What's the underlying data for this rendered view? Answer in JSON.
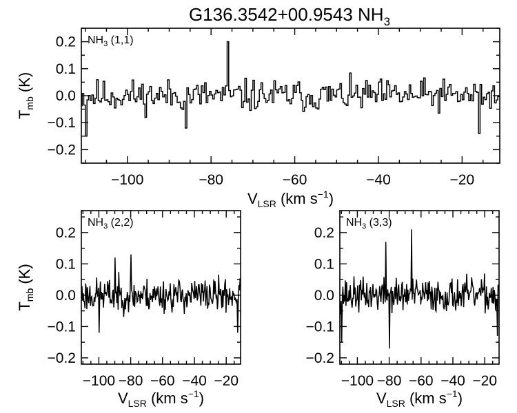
{
  "title": {
    "main": "G136.3542+00.9543 NH",
    "sub": "3"
  },
  "axis_text": {
    "y": {
      "main": "T",
      "sub": "mb",
      "tail": " (K)"
    },
    "x": {
      "main": "V",
      "sub": "LSR",
      "tail": " (km s",
      "sup": "−1",
      "close": ")"
    }
  },
  "chart_data": [
    {
      "type": "line",
      "panel": "top",
      "label": {
        "main": "NH",
        "sub": "3",
        "tail": " (1,1)"
      },
      "xlim": [
        -111,
        -11
      ],
      "ylim": [
        -0.25,
        0.25
      ],
      "xticks": [
        -100,
        -80,
        -60,
        -40,
        -20
      ],
      "xtick_labels": [
        "−100",
        "−80",
        "−60",
        "−40",
        "−20"
      ],
      "yticks": [
        -0.2,
        -0.1,
        0.0,
        0.1,
        0.2
      ],
      "ytick_labels": [
        "−0.2",
        "−0.1",
        "0.0",
        "0.1",
        "0.2"
      ],
      "series": [
        {
          "step": true,
          "x_start": -111,
          "x_step": 0.385,
          "peaks": [
            {
              "x": -76,
              "y": 0.2
            },
            {
              "x": -110,
              "y": -0.15
            },
            {
              "x": -86,
              "y": -0.12
            },
            {
              "x": -16,
              "y": -0.14
            }
          ],
          "seed": 11,
          "amplitude": 0.055
        }
      ]
    },
    {
      "type": "line",
      "panel": "bottom-left",
      "label": {
        "main": "NH",
        "sub": "3",
        "tail": " (2,2)"
      },
      "xlim": [
        -111,
        -11
      ],
      "ylim": [
        -0.22,
        0.27
      ],
      "xticks": [
        -100,
        -80,
        -60,
        -40,
        -20
      ],
      "xtick_labels": [
        "−100",
        "−80",
        "−60",
        "−40",
        "−20"
      ],
      "yticks": [
        -0.2,
        -0.1,
        0.0,
        0.1,
        0.2
      ],
      "ytick_labels": [
        "−0.2",
        "−0.1",
        "0.0",
        "0.1",
        "0.2"
      ],
      "series": [
        {
          "step": false,
          "x_start": -111,
          "x_step": 0.385,
          "peaks": [
            {
              "x": -90,
              "y": 0.12
            },
            {
              "x": -80,
              "y": 0.13
            },
            {
              "x": -100,
              "y": -0.12
            },
            {
              "x": -13,
              "y": -0.12
            }
          ],
          "seed": 23,
          "amplitude": 0.05
        }
      ]
    },
    {
      "type": "line",
      "panel": "bottom-right",
      "label": {
        "main": "NH",
        "sub": "3",
        "tail": " (3,3)"
      },
      "xlim": [
        -111,
        -11
      ],
      "ylim": [
        -0.22,
        0.27
      ],
      "xticks": [
        -100,
        -80,
        -60,
        -40,
        -20
      ],
      "xtick_labels": [
        "−100",
        "−80",
        "−60",
        "−40",
        "−20"
      ],
      "yticks": [
        -0.2,
        -0.1,
        0.0,
        0.1,
        0.2
      ],
      "ytick_labels": [
        "−0.2",
        "−0.1",
        "0.0",
        "0.1",
        "0.2"
      ],
      "series": [
        {
          "step": false,
          "x_start": -111,
          "x_step": 0.385,
          "peaks": [
            {
              "x": -82,
              "y": 0.17
            },
            {
              "x": -66,
              "y": 0.21
            },
            {
              "x": -80,
              "y": -0.17
            },
            {
              "x": -110,
              "y": -0.15
            },
            {
              "x": -12,
              "y": -0.13
            }
          ],
          "seed": 37,
          "amplitude": 0.05
        }
      ]
    }
  ]
}
